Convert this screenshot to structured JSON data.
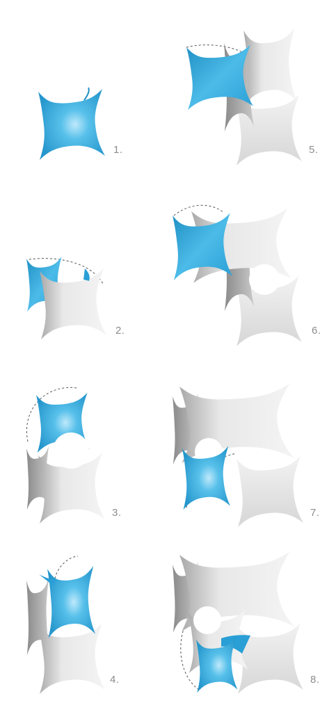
{
  "steps": [
    {
      "label": "1."
    },
    {
      "label": "2."
    },
    {
      "label": "3."
    },
    {
      "label": "4."
    },
    {
      "label": "5."
    },
    {
      "label": "6."
    },
    {
      "label": "7."
    },
    {
      "label": "8."
    }
  ],
  "colors": {
    "active_face": "#3aaee0",
    "active_face_light": "#7fd0f2",
    "active_face_dark": "#1f8fc4",
    "surface": "#ececec",
    "surface_shade": "#bdbdbd",
    "surface_dark": "#9a9a9a",
    "fold_arc": "#555555"
  }
}
